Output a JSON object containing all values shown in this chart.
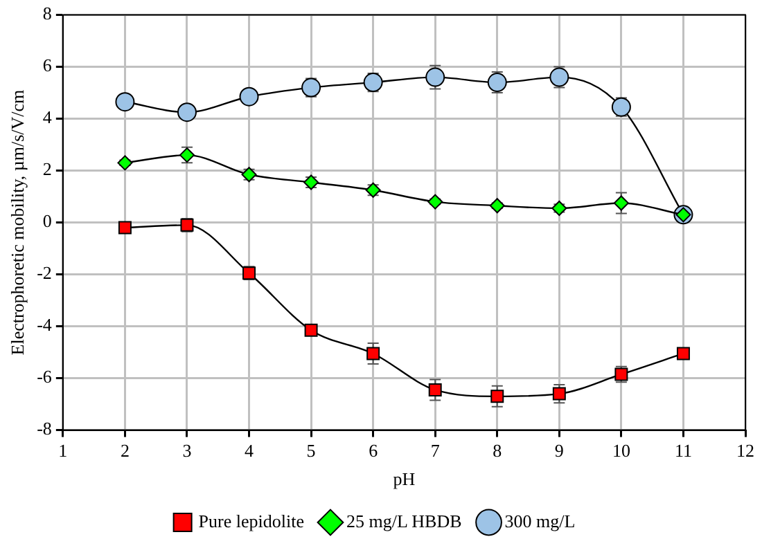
{
  "chart_data": {
    "type": "line",
    "xlabel": "pH",
    "ylabel": "Electrophoretic mobility, µm/s/V/cm",
    "x": [
      2,
      3,
      4,
      5,
      6,
      7,
      8,
      9,
      10,
      11
    ],
    "xlim": [
      1,
      12
    ],
    "xticks": [
      1,
      2,
      3,
      4,
      5,
      6,
      7,
      8,
      9,
      10,
      11,
      12
    ],
    "ylim": [
      -8,
      8
    ],
    "yticks": [
      -8,
      -6,
      -4,
      -2,
      0,
      2,
      4,
      6,
      8
    ],
    "grid": true,
    "legend": "bottom",
    "series": [
      {
        "name": "Pure lepidolite",
        "color": "#ff0000",
        "marker": "square",
        "values": [
          -0.2,
          -0.1,
          -1.95,
          -4.15,
          -5.05,
          -6.45,
          -6.7,
          -6.6,
          -5.85,
          -5.05
        ],
        "errors": [
          null,
          0.25,
          0.25,
          null,
          0.4,
          0.4,
          0.4,
          0.35,
          0.3,
          null
        ]
      },
      {
        "name": "25 mg/L HBDB",
        "color": "#00ff00",
        "marker": "diamond",
        "values": [
          2.3,
          2.6,
          1.85,
          1.55,
          1.25,
          0.8,
          0.65,
          0.55,
          0.75,
          0.3
        ],
        "errors": [
          0.1,
          0.3,
          0.2,
          0.2,
          0.2,
          0.1,
          0.1,
          0.15,
          0.4,
          null
        ]
      },
      {
        "name": "300 mg/L",
        "color": "#9dc3e6",
        "marker": "circle",
        "values": [
          4.65,
          4.25,
          4.85,
          5.2,
          5.4,
          5.6,
          5.4,
          5.6,
          4.45,
          0.3
        ],
        "errors": [
          null,
          null,
          null,
          0.35,
          0.35,
          0.45,
          0.4,
          0.4,
          0.35,
          0.1
        ]
      }
    ]
  }
}
